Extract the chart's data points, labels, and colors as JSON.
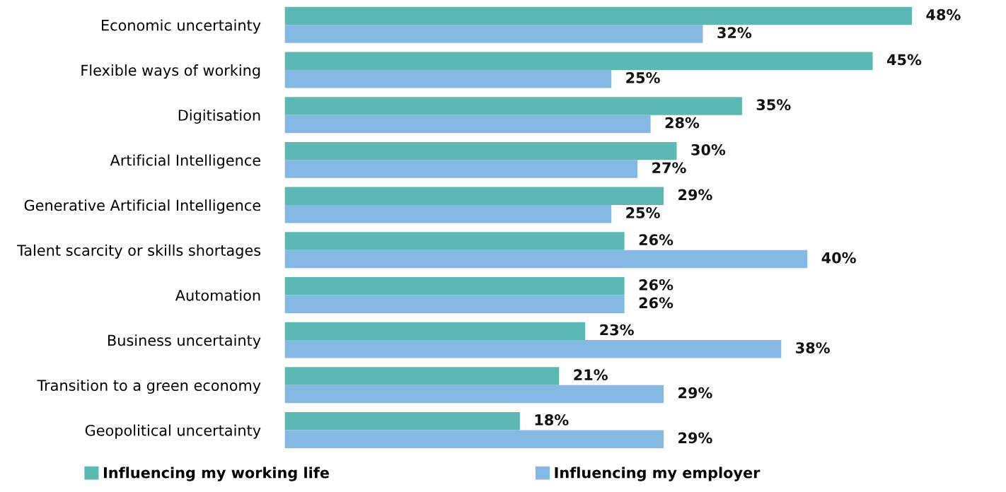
{
  "chart_data": {
    "type": "bar",
    "orientation": "horizontal",
    "categories": [
      "Economic uncertainty",
      "Flexible ways of working",
      "Digitisation",
      "Artificial Intelligence",
      "Generative Artificial Intelligence",
      "Talent scarcity or skills shortages",
      "Automation",
      "Business uncertainty",
      "Transition to a green economy",
      "Geopolitical uncertainty"
    ],
    "series": [
      {
        "name": "Influencing my working life",
        "color": "#5cb8b2",
        "values": [
          48,
          45,
          35,
          30,
          29,
          26,
          26,
          23,
          21,
          18
        ],
        "value_labels": [
          "48%",
          "45%",
          "35%",
          "30%",
          "29%",
          "26%",
          "26%",
          "23%",
          "21%",
          "18%"
        ]
      },
      {
        "name": "Influencing my employer",
        "color": "#86b8e4",
        "values": [
          32,
          25,
          28,
          27,
          25,
          40,
          26,
          38,
          29,
          29
        ],
        "value_labels": [
          "32%",
          "25%",
          "28%",
          "27%",
          "25%",
          "40%",
          "26%",
          "38%",
          "29%",
          "29%"
        ]
      }
    ],
    "tick_labels": "y",
    "legend": "bottom",
    "grid": false
  }
}
